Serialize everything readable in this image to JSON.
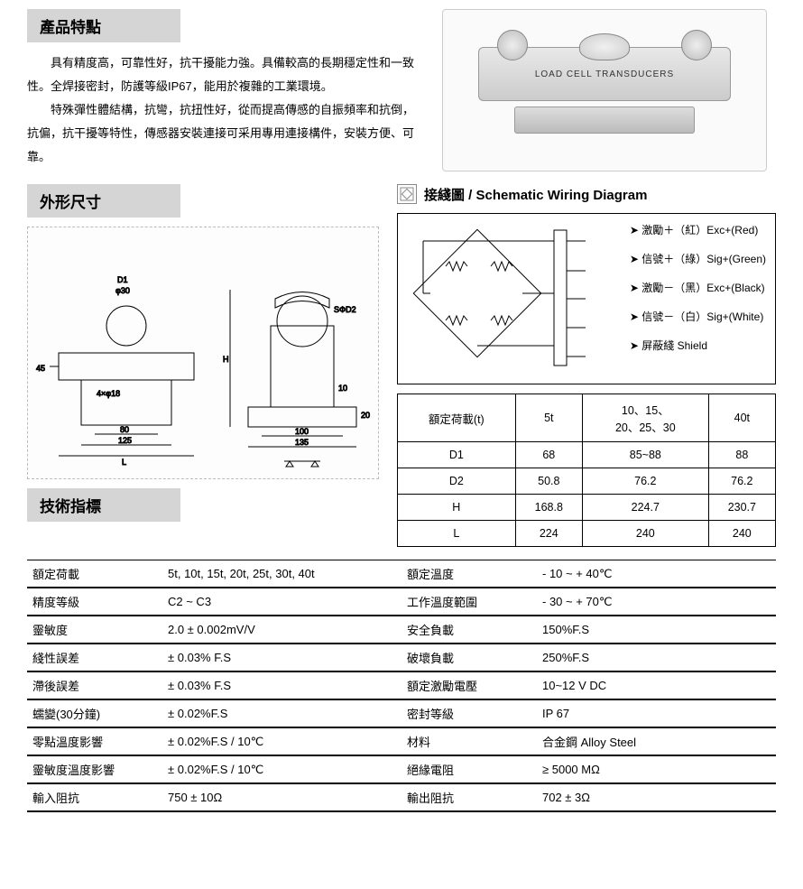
{
  "sections": {
    "features": "產品特點",
    "dimensions": "外形尺寸",
    "wiring": "接綫圖 / Schematic Wiring Diagram",
    "specs": "技術指標"
  },
  "product_label": "LOAD CELL TRANSDUCERS",
  "paragraphs": [
    "具有精度高，可靠性好，抗干擾能力強。具備較高的長期穩定性和一致性。全焊接密封，防護等級IP67，能用於複雜的工業環境。",
    "特殊彈性體結構，抗彎，抗扭性好，從而提高傳感的自振頻率和抗倒，抗偏，抗干擾等特性，傳感器安裝連接可采用專用連接構件，安裝方便、可靠。"
  ],
  "wiring_lines": [
    "激勵＋（紅）Exc+(Red)",
    "信號＋（綠）Sig+(Green)",
    "激勵－（黑）Exc+(Black)",
    "信號－（白）Sig+(White)",
    "屏蔽綫  Shield"
  ],
  "wiring_colors": [
    "#cc0000",
    "#009933",
    "#000000",
    "#555555",
    "#777777"
  ],
  "dim_table": {
    "header": [
      "額定荷載(t)",
      "5t",
      "10、15、\n20、25、30",
      "40t"
    ],
    "rows": [
      [
        "D1",
        "68",
        "85~88",
        "88"
      ],
      [
        "D2",
        "50.8",
        "76.2",
        "76.2"
      ],
      [
        "H",
        "168.8",
        "224.7",
        "230.7"
      ],
      [
        "L",
        "224",
        "240",
        "240"
      ]
    ]
  },
  "spec_pairs": [
    [
      "額定荷載",
      "5t, 10t, 15t, 20t, 25t, 30t, 40t",
      "額定溫度",
      "- 10 ~ + 40℃"
    ],
    [
      "精度等級",
      "C2 ~ C3",
      "工作溫度範圍",
      "- 30 ~ + 70℃"
    ],
    [
      "靈敏度",
      "2.0 ± 0.002mV/V",
      "安全負載",
      "150%F.S"
    ],
    [
      "綫性誤差",
      "± 0.03% F.S",
      "破壞負載",
      "250%F.S"
    ],
    [
      "滯後誤差",
      "± 0.03% F.S",
      "額定激勵電壓",
      "10~12 V DC"
    ],
    [
      "蠕變(30分鐘)",
      "± 0.02%F.S",
      "密封等級",
      "IP 67"
    ],
    [
      "零點溫度影響",
      "± 0.02%F.S / 10℃",
      "材料",
      "合金鋼 Alloy Steel"
    ],
    [
      "靈敏度溫度影響",
      "± 0.02%F.S / 10℃",
      "絕緣電阻",
      "≥ 5000 MΩ"
    ],
    [
      "輸入阻抗",
      "750 ± 10Ω",
      "輸出阻抗",
      "702 ± 3Ω"
    ]
  ],
  "drawing_labels": {
    "d1": "D1",
    "d2": "SΦD2",
    "phi30": "φ30",
    "h": "H",
    "l": "L",
    "dim45": "45",
    "dim80": "80",
    "dim125": "125",
    "dim100": "100",
    "dim135": "135",
    "dim10": "10",
    "dim20": "20",
    "holes": "4×φ18"
  }
}
